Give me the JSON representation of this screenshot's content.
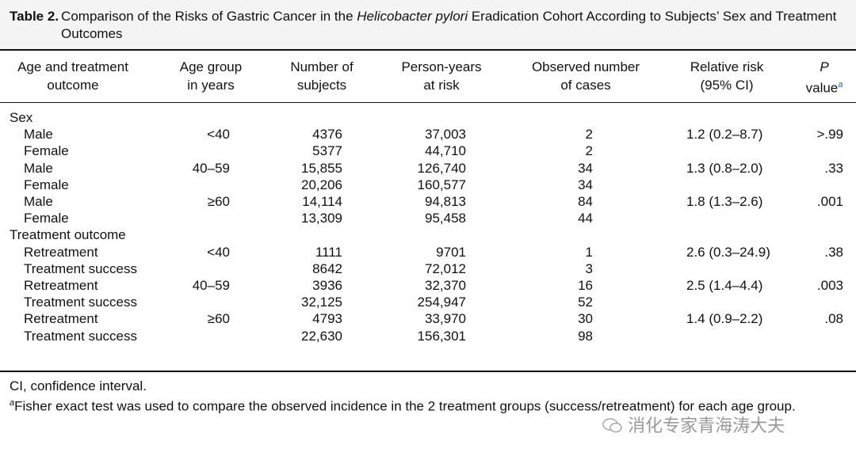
{
  "title": {
    "label": "Table 2.",
    "before": "Comparison of the Risks of Gastric Cancer in the",
    "italic": "Helicobacter pylori",
    "after": "Eradication Cohort According to Subjects’ Sex and Treatment Outcomes"
  },
  "table": {
    "header": [
      {
        "lines": [
          "Age and treatment",
          "outcome"
        ]
      },
      {
        "lines": [
          "Age group",
          "in years"
        ]
      },
      {
        "lines": [
          "Number of",
          "subjects"
        ]
      },
      {
        "lines": [
          "Person-years",
          "at risk"
        ]
      },
      {
        "lines": [
          "Observed number",
          "of cases"
        ]
      },
      {
        "lines": [
          "Relative risk",
          "(95% CI)"
        ]
      },
      {
        "lines": [
          "P",
          "value"
        ],
        "italic_first": true,
        "footnote": "a"
      }
    ],
    "rows": [
      {
        "section": "Sex"
      },
      {
        "cells": [
          "Male",
          "<40",
          "4376",
          "37,003",
          "2",
          "1.2 (0.2–8.7)",
          ">.99"
        ]
      },
      {
        "cells": [
          "Female",
          null,
          "5377",
          "44,710",
          "2",
          null,
          null
        ]
      },
      {
        "cells": [
          "Male",
          "40–59",
          "15,855",
          "126,740",
          "34",
          "1.3 (0.8–2.0)",
          ".33"
        ]
      },
      {
        "cells": [
          "Female",
          null,
          "20,206",
          "160,577",
          "34",
          null,
          null
        ]
      },
      {
        "cells": [
          "Male",
          "≥60",
          "14,114",
          "94,813",
          "84",
          "1.8 (1.3–2.6)",
          ".001"
        ]
      },
      {
        "cells": [
          "Female",
          null,
          "13,309",
          "95,458",
          "44",
          null,
          null
        ]
      },
      {
        "section": "Treatment outcome"
      },
      {
        "cells": [
          "Retreatment",
          "<40",
          "1111",
          "9701",
          "1",
          "2.6 (0.3–24.9)",
          ".38"
        ]
      },
      {
        "cells": [
          "Treatment success",
          null,
          "8642",
          "72,012",
          "3",
          null,
          null
        ]
      },
      {
        "cells": [
          "Retreatment",
          "40–59",
          "3936",
          "32,370",
          "16",
          "2.5 (1.4–4.4)",
          ".003"
        ]
      },
      {
        "cells": [
          "Treatment success",
          null,
          "32,125",
          "254,947",
          "52",
          null,
          null
        ]
      },
      {
        "cells": [
          "Retreatment",
          "≥60",
          "4793",
          "33,970",
          "30",
          "1.4 (0.9–2.2)",
          ".08"
        ]
      },
      {
        "cells": [
          "Treatment success",
          null,
          "22,630",
          "156,301",
          "98",
          null,
          null
        ]
      }
    ]
  },
  "footnotes": [
    "CI, confidence interval.",
    {
      "mark": "a",
      "text": "Fisher exact test was used to compare the observed incidence in the 2 treatment groups (success/retreatment) for each age group."
    }
  ],
  "watermark": "消化专家青海涛大夫"
}
